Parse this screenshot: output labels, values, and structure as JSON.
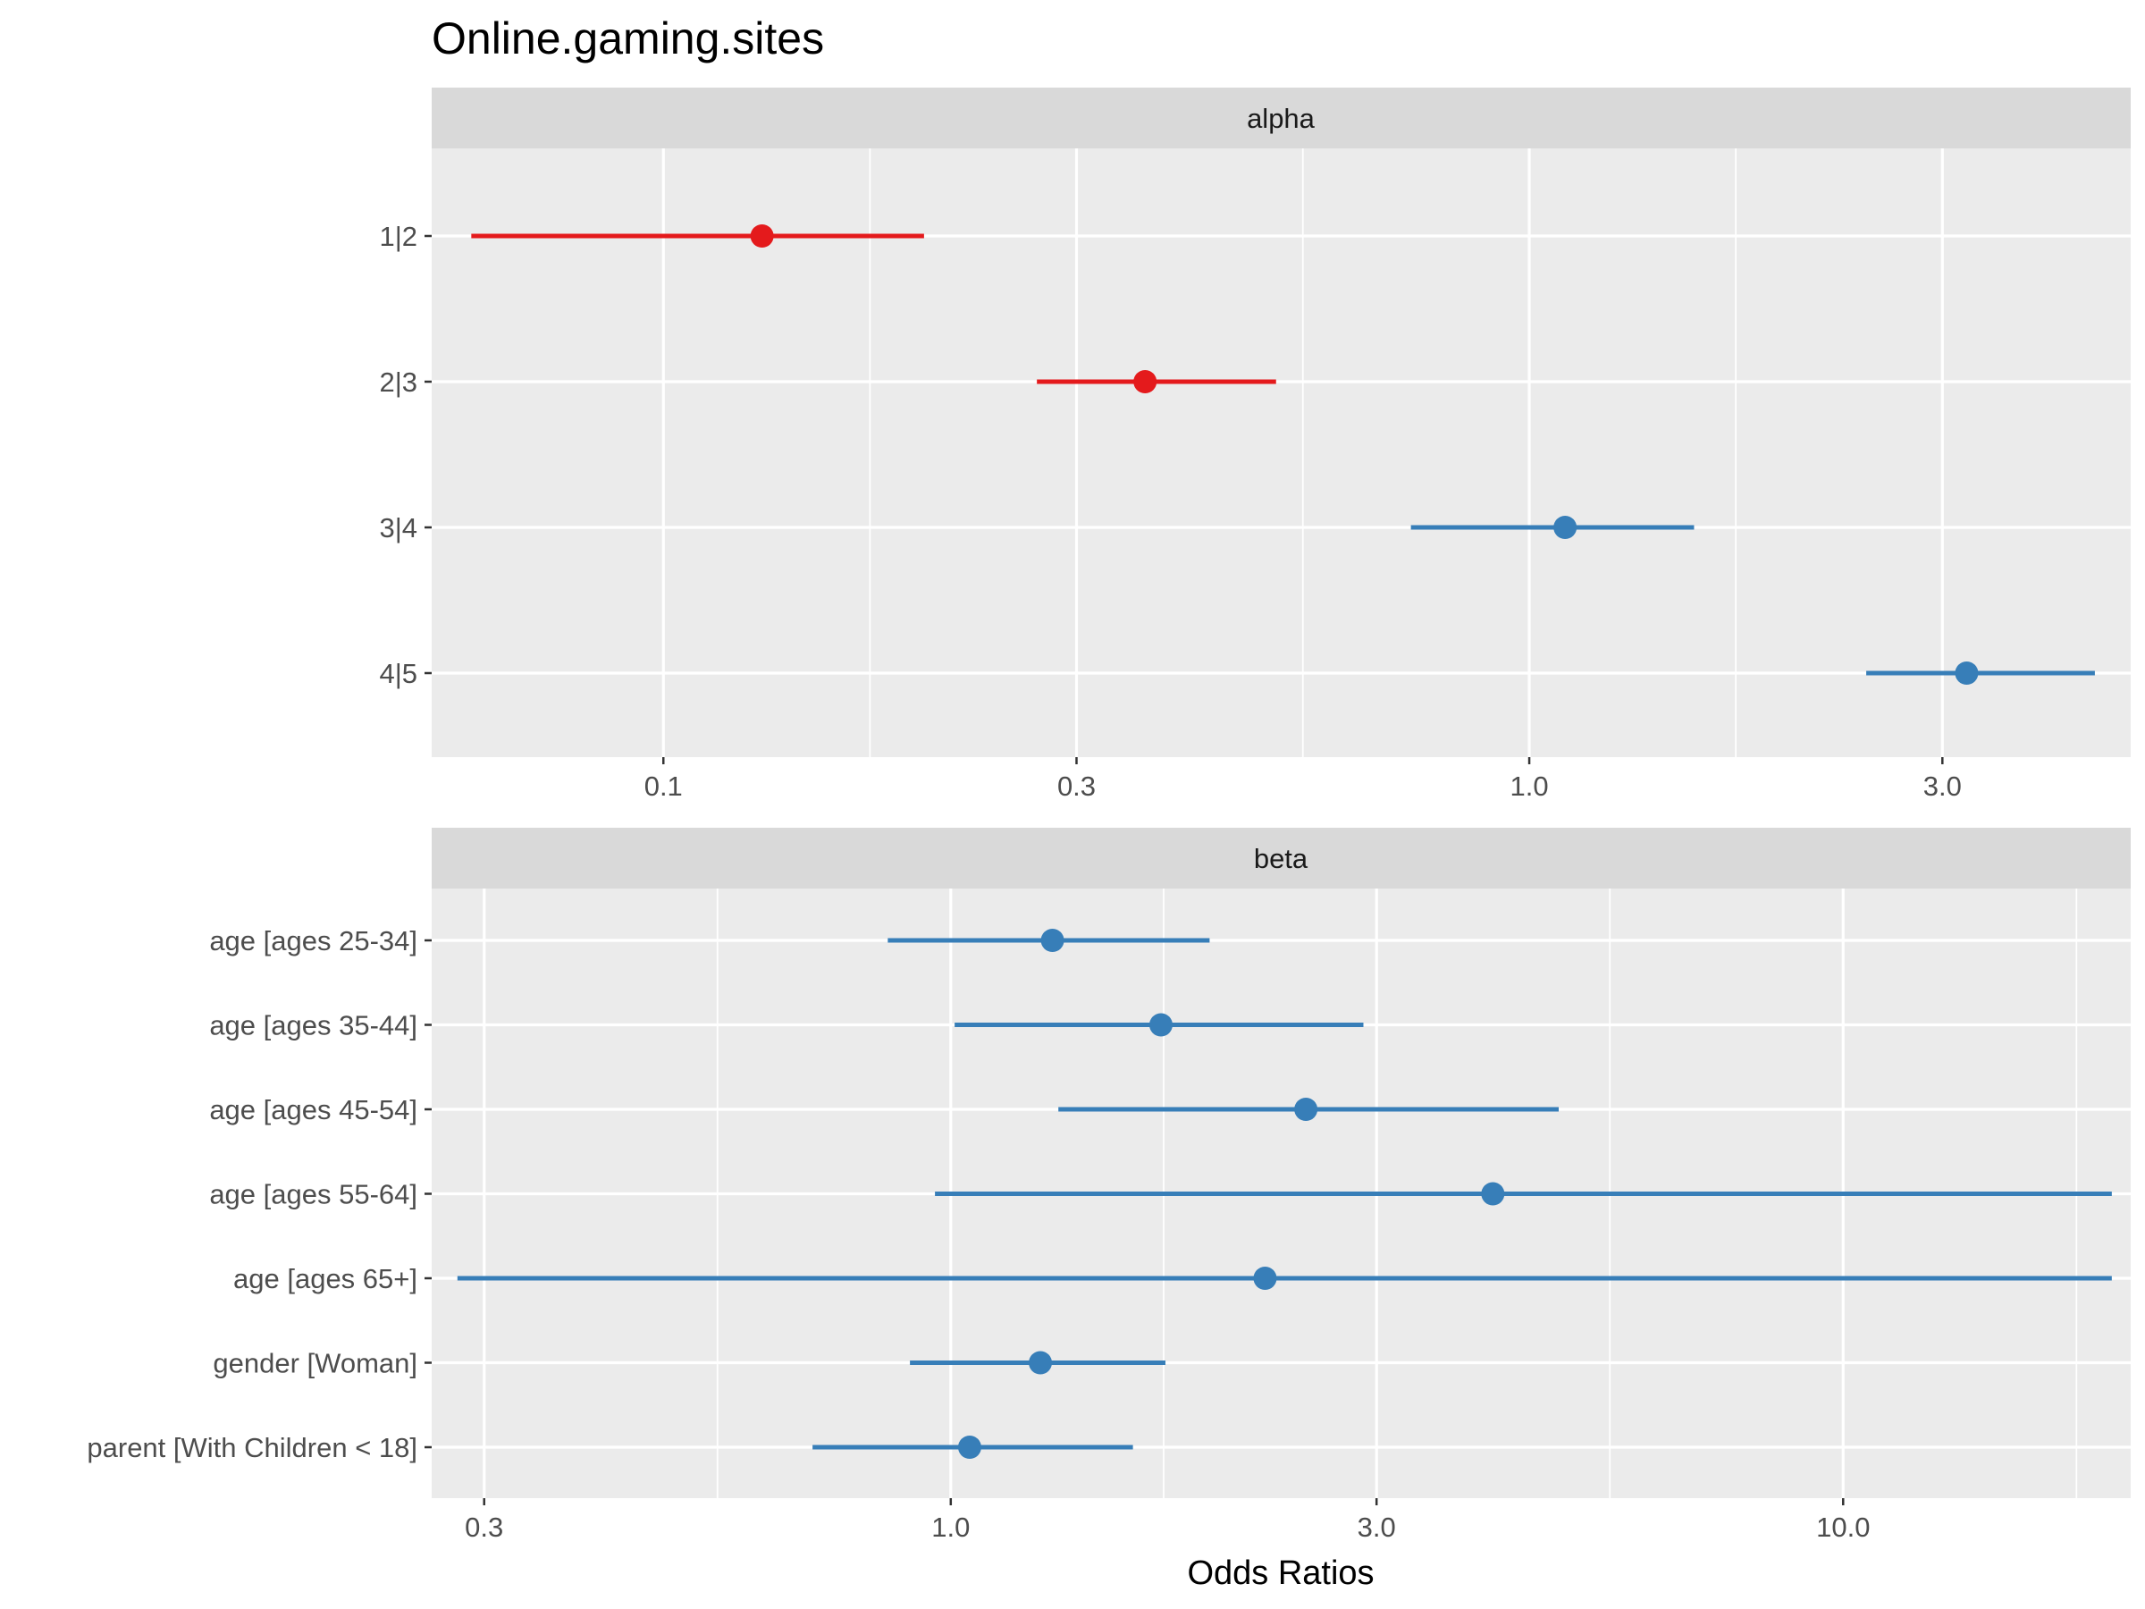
{
  "title": "Online.gaming.sites",
  "colors": {
    "negative": "#E41A1C",
    "positive": "#377EB8",
    "panel": "#EBEBEB",
    "strip": "#D9D9D9",
    "grid": "#FFFFFF"
  },
  "chart_data": [
    {
      "type": "forest",
      "facet": "alpha",
      "x_scale": "log10",
      "xlim": [
        0.06,
        4.5
      ],
      "x_ticks": [
        "0.1",
        "0.3",
        "1.0",
        "3.0"
      ],
      "x_tick_values": [
        0.1,
        0.3,
        1.0,
        3.0
      ],
      "grid": true,
      "terms": [
        {
          "label": "1|2",
          "estimate": 0.13,
          "low": 0.06,
          "high": 0.2,
          "direction": "negative"
        },
        {
          "label": "2|3",
          "estimate": 0.36,
          "low": 0.27,
          "high": 0.51,
          "direction": "negative"
        },
        {
          "label": "3|4",
          "estimate": 1.1,
          "low": 0.73,
          "high": 1.55,
          "direction": "positive"
        },
        {
          "label": "4|5",
          "estimate": 3.2,
          "low": 2.45,
          "high": 4.5,
          "direction": "positive"
        }
      ]
    },
    {
      "type": "forest",
      "facet": "beta",
      "x_scale": "log10",
      "xlim": [
        0.28,
        20.0
      ],
      "x_ticks": [
        "0.3",
        "1.0",
        "3.0",
        "10.0"
      ],
      "x_tick_values": [
        0.3,
        1.0,
        3.0,
        10.0
      ],
      "xlabel": "Odds Ratios",
      "grid": true,
      "terms": [
        {
          "label": "age [ages 25-34]",
          "estimate": 1.3,
          "low": 0.85,
          "high": 1.95,
          "direction": "positive"
        },
        {
          "label": "age [ages 35-44]",
          "estimate": 1.72,
          "low": 1.01,
          "high": 2.9,
          "direction": "positive"
        },
        {
          "label": "age [ages 45-54]",
          "estimate": 2.5,
          "low": 1.32,
          "high": 4.8,
          "direction": "positive"
        },
        {
          "label": "age [ages 55-64]",
          "estimate": 4.05,
          "low": 0.96,
          "high": 20.0,
          "direction": "positive"
        },
        {
          "label": "age [ages 65+]",
          "estimate": 2.25,
          "low": 0.28,
          "high": 20.0,
          "direction": "positive"
        },
        {
          "label": "gender [Woman]",
          "estimate": 1.26,
          "low": 0.9,
          "high": 1.74,
          "direction": "positive"
        },
        {
          "label": "parent [With Children < 18]",
          "estimate": 1.05,
          "low": 0.7,
          "high": 1.6,
          "direction": "positive"
        }
      ]
    }
  ]
}
